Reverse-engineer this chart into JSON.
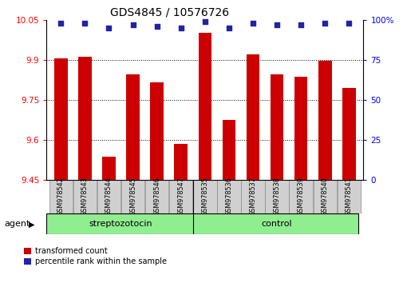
{
  "title": "GDS4845 / 10576726",
  "samples": [
    "GSM978542",
    "GSM978543",
    "GSM978544",
    "GSM978545",
    "GSM978546",
    "GSM978547",
    "GSM978535",
    "GSM978536",
    "GSM978537",
    "GSM978538",
    "GSM978539",
    "GSM978540",
    "GSM978541"
  ],
  "red_values": [
    9.905,
    9.91,
    9.535,
    9.845,
    9.815,
    9.585,
    10.0,
    9.675,
    9.92,
    9.845,
    9.835,
    9.895,
    9.795
  ],
  "blue_values": [
    98,
    98,
    95,
    97,
    96,
    95,
    99,
    95,
    98,
    97,
    97,
    98,
    98
  ],
  "ylim_left": [
    9.45,
    10.05
  ],
  "ylim_right": [
    0,
    100
  ],
  "yticks_left": [
    9.45,
    9.6,
    9.75,
    9.9,
    10.05
  ],
  "yticks_right": [
    0,
    25,
    50,
    75,
    100
  ],
  "ytick_labels_right": [
    "0",
    "25",
    "50",
    "75",
    "100%"
  ],
  "bar_color": "#CC0000",
  "dot_color": "#2222AA",
  "legend_red": "transformed count",
  "legend_blue": "percentile rank within the sample",
  "group1_label": "streptozotocin",
  "group2_label": "control",
  "group_color": "#90EE90",
  "agent_label": "agent",
  "title_fontsize": 10,
  "axis_fontsize": 8,
  "tick_fontsize": 7.5,
  "label_fontsize": 5.8,
  "group_fontsize": 8,
  "legend_fontsize": 7
}
